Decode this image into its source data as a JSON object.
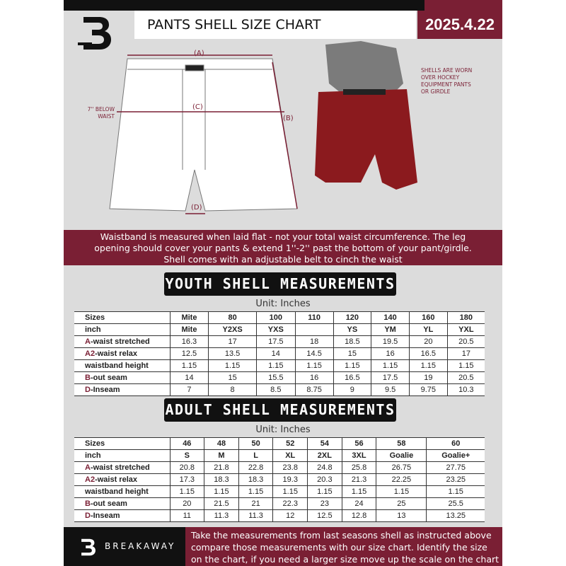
{
  "header": {
    "title": "PANTS SHELL SIZE CHART",
    "date": "2025.4.22",
    "logo": "B"
  },
  "diagram": {
    "label_a": "(A)",
    "label_b": "(B)",
    "label_c": "(C)",
    "label_d": "(D)",
    "below_waist": "7'' BELOW WAIST",
    "note": "SHELLS ARE WORN OVER HOCKEY EQUIPMENT PANTS OR GIRDLE"
  },
  "banner": {
    "line1": "Waistband is measured when laid flat - not your total waist circumference. The leg",
    "line2": "opening should cover your pants & extend 1''-2'' past the bottom of your pant/girdle.",
    "line3": "Shell comes with an adjustable belt to cinch the waist"
  },
  "youth": {
    "title": "YOUTH SHELL MEASUREMENTS",
    "unit": "Unit: Inches",
    "rows": [
      {
        "label": "Sizes",
        "values": [
          "Mite",
          "80",
          "100",
          "110",
          "120",
          "140",
          "160",
          "180"
        ]
      },
      {
        "label": "inch",
        "values": [
          "Mite",
          "Y2XS",
          "YXS",
          "",
          "YS",
          "YM",
          "YL",
          "YXL"
        ]
      },
      {
        "letter": "A",
        "label": "-waist stretched",
        "values": [
          "16.3",
          "17",
          "17.5",
          "18",
          "18.5",
          "19.5",
          "20",
          "20.5"
        ]
      },
      {
        "letter": "A2",
        "label": "-waist relax",
        "values": [
          "12.5",
          "13.5",
          "14",
          "14.5",
          "15",
          "16",
          "16.5",
          "17"
        ]
      },
      {
        "label": "waistband height",
        "values": [
          "1.15",
          "1.15",
          "1.15",
          "1.15",
          "1.15",
          "1.15",
          "1.15",
          "1.15"
        ]
      },
      {
        "letter": "B",
        "label": "-out seam",
        "values": [
          "14",
          "15",
          "15.5",
          "16",
          "16.5",
          "17.5",
          "19",
          "20.5"
        ]
      },
      {
        "letter": "D",
        "label": "-Inseam",
        "values": [
          "7",
          "8",
          "8.5",
          "8.75",
          "9",
          "9.5",
          "9.75",
          "10.3"
        ]
      }
    ]
  },
  "adult": {
    "title": "ADULT SHELL MEASUREMENTS",
    "unit": "Unit: Inches",
    "rows": [
      {
        "label": "Sizes",
        "values": [
          "46",
          "48",
          "50",
          "52",
          "54",
          "56",
          "58",
          "60"
        ]
      },
      {
        "label": "inch",
        "values": [
          "S",
          "M",
          "L",
          "XL",
          "2XL",
          "3XL",
          "Goalie",
          "Goalie+"
        ]
      },
      {
        "letter": "A",
        "label": "-waist stretched",
        "values": [
          "20.8",
          "21.8",
          "22.8",
          "23.8",
          "24.8",
          "25.8",
          "26.75",
          "27.75"
        ]
      },
      {
        "letter": "A2",
        "label": "-waist relax",
        "values": [
          "17.3",
          "18.3",
          "18.3",
          "19.3",
          "20.3",
          "21.3",
          "22.25",
          "23.25"
        ]
      },
      {
        "label": "waistband height",
        "values": [
          "1.15",
          "1.15",
          "1.15",
          "1.15",
          "1.15",
          "1.15",
          "1.15",
          "1.15"
        ]
      },
      {
        "letter": "B",
        "label": "-out seam",
        "values": [
          "20",
          "21.5",
          "21",
          "22.3",
          "23",
          "24",
          "25",
          "25.5"
        ]
      },
      {
        "letter": "D",
        "label": "-Inseam",
        "values": [
          "11",
          "11.3",
          "11.3",
          "12",
          "12.5",
          "12.8",
          "13",
          "13.25"
        ]
      }
    ]
  },
  "footer": {
    "brand": "BREAKAWAY",
    "line1": "Take the measurements from last seasons shell as instructed above",
    "line2": "compare those measurements  with our size chart. Identify the size",
    "line3": "on the chart, if you need a larger size move up the scale on the chart"
  },
  "colors": {
    "accent": "#7a1f34",
    "background": "#dcdcdc",
    "dark": "#111111"
  }
}
